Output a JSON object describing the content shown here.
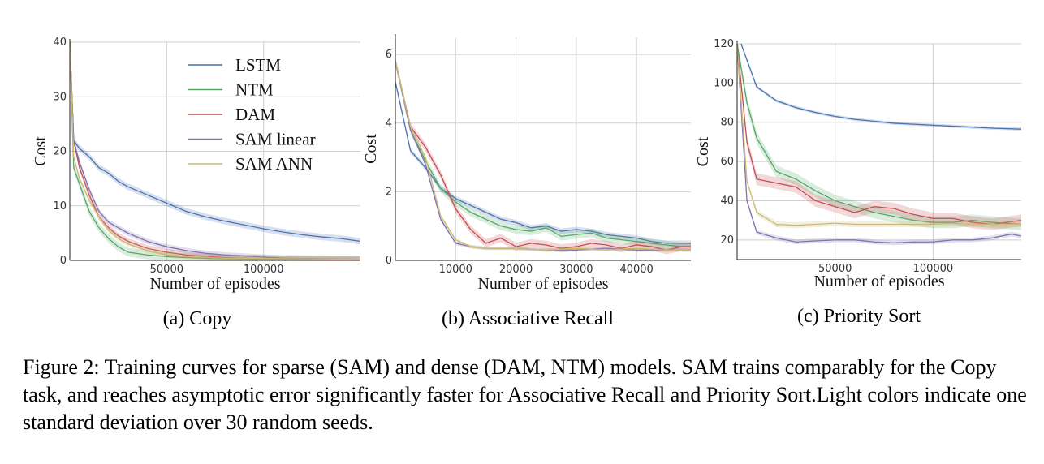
{
  "colors": {
    "LSTM": "#4c72b0",
    "NTM": "#55a868",
    "DAM": "#c44e52",
    "SAM linear": "#8172b2",
    "SAM ANN": "#ccb974"
  },
  "legend": [
    "LSTM",
    "NTM",
    "DAM",
    "SAM linear",
    "SAM ANN"
  ],
  "caption": "Figure 2: Training curves for sparse (SAM) and dense (DAM, NTM) models. SAM trains comparably for the Copy task, and reaches asymptotic error significantly faster for Associative Recall and Priority Sort.Light colors indicate one standard deviation over 30 random seeds.",
  "chart_data": [
    {
      "type": "line",
      "subcaption": "(a)  Copy",
      "xlabel": "Number of episodes",
      "ylabel": "Cost",
      "xlim": [
        0,
        150000
      ],
      "ylim": [
        0,
        40
      ],
      "xticks": [
        50000,
        100000
      ],
      "yticks": [
        0,
        10,
        20,
        30,
        40
      ],
      "grid": true,
      "legend_position": "top-right",
      "series": [
        {
          "name": "LSTM",
          "x": [
            0,
            2000,
            5000,
            10000,
            15000,
            20000,
            25000,
            30000,
            40000,
            50000,
            60000,
            70000,
            80000,
            90000,
            100000,
            110000,
            120000,
            130000,
            140000,
            150000
          ],
          "y": [
            40,
            22,
            20.5,
            19,
            17,
            16,
            14.5,
            13.5,
            12,
            10.5,
            9,
            8,
            7.2,
            6.5,
            5.8,
            5.2,
            4.7,
            4.3,
            4.0,
            3.5
          ],
          "band": 0.6
        },
        {
          "name": "NTM",
          "x": [
            0,
            2000,
            5000,
            10000,
            15000,
            20000,
            25000,
            30000,
            40000,
            50000,
            60000,
            80000,
            100000,
            150000
          ],
          "y": [
            40,
            17,
            14,
            9,
            6,
            4,
            2.5,
            1.5,
            1.0,
            0.7,
            0.5,
            0.3,
            0.2,
            0.1
          ],
          "band": 0.8
        },
        {
          "name": "DAM",
          "x": [
            0,
            2000,
            5000,
            10000,
            15000,
            20000,
            25000,
            30000,
            40000,
            50000,
            60000,
            80000,
            100000,
            150000
          ],
          "y": [
            40,
            22,
            17,
            12,
            8,
            6,
            4.5,
            3.5,
            2.2,
            1.5,
            1.0,
            0.5,
            0.3,
            0.1
          ],
          "band": 0.6
        },
        {
          "name": "SAM linear",
          "x": [
            0,
            2000,
            5000,
            10000,
            15000,
            20000,
            25000,
            30000,
            40000,
            50000,
            60000,
            70000,
            80000,
            90000,
            100000,
            110000,
            150000
          ],
          "y": [
            40,
            22,
            18,
            13,
            9,
            7,
            6,
            5,
            3.5,
            2.5,
            1.8,
            1.3,
            1.0,
            0.8,
            0.6,
            0.4,
            0.2
          ],
          "band": 0.5
        },
        {
          "name": "SAM ANN",
          "x": [
            0,
            2000,
            5000,
            10000,
            15000,
            20000,
            25000,
            30000,
            40000,
            50000,
            60000,
            80000,
            150000
          ],
          "y": [
            40,
            19,
            15,
            11,
            8,
            5.5,
            4,
            3,
            1.8,
            1.0,
            0.7,
            0.4,
            0.2
          ],
          "band": 0.5
        }
      ]
    },
    {
      "type": "line",
      "subcaption": "(b)  Associative Recall",
      "xlabel": "Number of episodes",
      "ylabel": "Cost",
      "xlim": [
        0,
        49000
      ],
      "ylim": [
        0,
        6.5
      ],
      "xticks": [
        10000,
        20000,
        30000,
        40000
      ],
      "yticks": [
        0,
        2,
        4,
        6
      ],
      "grid": true,
      "series": [
        {
          "name": "LSTM",
          "x": [
            0,
            2500,
            5000,
            7500,
            10000,
            12500,
            15000,
            17500,
            20000,
            22500,
            25000,
            27500,
            30000,
            32500,
            35000,
            37500,
            40000,
            42500,
            45000,
            47500,
            49000
          ],
          "y": [
            5.2,
            3.2,
            2.7,
            2.1,
            1.8,
            1.6,
            1.4,
            1.2,
            1.1,
            0.95,
            1.0,
            0.85,
            0.9,
            0.85,
            0.75,
            0.7,
            0.65,
            0.55,
            0.5,
            0.5,
            0.5
          ],
          "band": 0.08
        },
        {
          "name": "NTM",
          "x": [
            0,
            2500,
            5000,
            7500,
            10000,
            12500,
            15000,
            17500,
            20000,
            22500,
            25000,
            27500,
            30000,
            32500,
            35000,
            37500,
            40000,
            42500,
            45000,
            47500,
            49000
          ],
          "y": [
            5.8,
            3.8,
            2.9,
            2.1,
            1.7,
            1.4,
            1.2,
            1.0,
            0.9,
            0.85,
            0.95,
            0.7,
            0.75,
            0.8,
            0.65,
            0.6,
            0.55,
            0.5,
            0.45,
            0.4,
            0.4
          ],
          "band": 0.12
        },
        {
          "name": "DAM",
          "x": [
            0,
            2500,
            5000,
            7500,
            10000,
            12500,
            15000,
            17500,
            20000,
            22500,
            25000,
            27500,
            30000,
            32500,
            35000,
            37500,
            40000,
            42500,
            45000,
            47500,
            49000
          ],
          "y": [
            5.8,
            3.9,
            3.3,
            2.5,
            1.5,
            0.9,
            0.5,
            0.65,
            0.4,
            0.5,
            0.45,
            0.35,
            0.4,
            0.5,
            0.45,
            0.35,
            0.45,
            0.4,
            0.3,
            0.4,
            0.4
          ],
          "band": 0.12
        },
        {
          "name": "SAM linear",
          "x": [
            0,
            2500,
            5000,
            7500,
            10000,
            12500,
            15000,
            20000,
            25000,
            30000,
            35000,
            40000,
            45000,
            49000
          ],
          "y": [
            5.8,
            3.8,
            2.8,
            1.2,
            0.5,
            0.4,
            0.35,
            0.35,
            0.3,
            0.3,
            0.35,
            0.3,
            0.3,
            0.3
          ],
          "band": 0.05
        },
        {
          "name": "SAM ANN",
          "x": [
            0,
            2500,
            5000,
            7500,
            10000,
            12500,
            15000,
            20000,
            25000,
            30000,
            35000,
            40000,
            45000,
            49000
          ],
          "y": [
            5.8,
            3.9,
            3.0,
            1.3,
            0.6,
            0.4,
            0.35,
            0.35,
            0.3,
            0.35,
            0.3,
            0.35,
            0.3,
            0.3
          ],
          "band": 0.05
        }
      ]
    },
    {
      "type": "line",
      "subcaption": "(c)  Priority Sort",
      "xlabel": "Number of episodes",
      "ylabel": "Cost",
      "xlim": [
        0,
        145000
      ],
      "ylim": [
        10,
        120
      ],
      "xticks": [
        50000,
        100000
      ],
      "yticks": [
        20,
        40,
        60,
        80,
        100,
        120
      ],
      "grid": true,
      "series": [
        {
          "name": "LSTM",
          "x": [
            0,
            2000,
            10000,
            20000,
            30000,
            40000,
            50000,
            60000,
            70000,
            80000,
            90000,
            100000,
            110000,
            120000,
            130000,
            145000
          ],
          "y": [
            125,
            120,
            98,
            91,
            87.5,
            85,
            83,
            81.5,
            80.5,
            79.5,
            79,
            78.5,
            78,
            77.5,
            77,
            76.5
          ],
          "band": 0.8
        },
        {
          "name": "NTM",
          "x": [
            0,
            5000,
            10000,
            20000,
            30000,
            40000,
            50000,
            60000,
            70000,
            80000,
            90000,
            100000,
            110000,
            120000,
            130000,
            145000
          ],
          "y": [
            120,
            90,
            72,
            55,
            51,
            45,
            40,
            37,
            34,
            32,
            30,
            29,
            29,
            30,
            29,
            28
          ],
          "band": 3
        },
        {
          "name": "DAM",
          "x": [
            0,
            5000,
            10000,
            20000,
            30000,
            40000,
            50000,
            60000,
            70000,
            80000,
            90000,
            100000,
            110000,
            120000,
            130000,
            145000
          ],
          "y": [
            120,
            70,
            51,
            49,
            47,
            40,
            37,
            34,
            37,
            36,
            33,
            31,
            31,
            29,
            28,
            30
          ],
          "band": 3
        },
        {
          "name": "SAM linear",
          "x": [
            0,
            5000,
            10000,
            20000,
            30000,
            40000,
            50000,
            60000,
            70000,
            80000,
            90000,
            100000,
            110000,
            120000,
            130000,
            140000,
            145000
          ],
          "y": [
            120,
            40,
            24,
            21,
            19,
            19.5,
            20,
            20,
            19,
            18.5,
            19,
            19,
            20,
            20,
            21,
            23,
            22
          ],
          "band": 1.2
        },
        {
          "name": "SAM ANN",
          "x": [
            0,
            5000,
            10000,
            20000,
            30000,
            40000,
            50000,
            60000,
            70000,
            80000,
            90000,
            100000,
            110000,
            120000,
            130000,
            145000
          ],
          "y": [
            120,
            50,
            34,
            28,
            27.5,
            28,
            28.5,
            28,
            28,
            28,
            28,
            28,
            28.5,
            28,
            28,
            28
          ],
          "band": 1.5
        }
      ]
    }
  ]
}
